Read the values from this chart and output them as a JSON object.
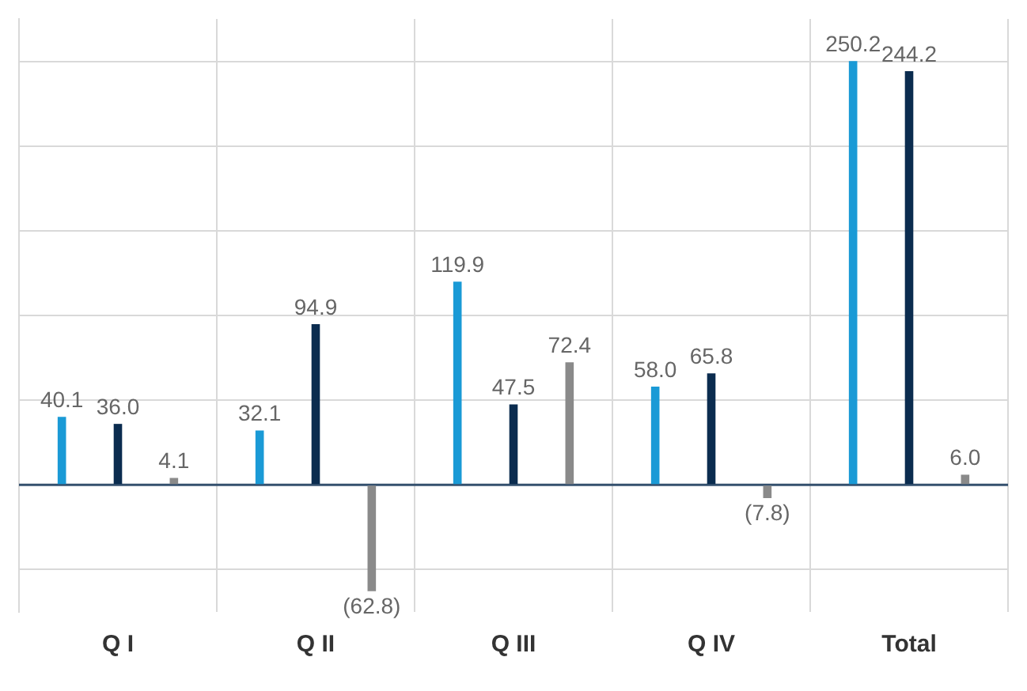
{
  "chart_data": {
    "type": "bar",
    "categories": [
      "Q I",
      "Q II",
      "Q III",
      "Q IV",
      "Total"
    ],
    "series": [
      {
        "color": "#1a9ad6",
        "values": [
          40.1,
          32.1,
          119.9,
          58.0,
          250.2
        ],
        "value_labels": [
          "40.1",
          "32.1",
          "119.9",
          "58.0",
          "250.2"
        ]
      },
      {
        "color": "#0b2c4f",
        "values": [
          36.0,
          94.9,
          47.5,
          65.8,
          244.2
        ],
        "value_labels": [
          "36.0",
          "94.9",
          "47.5",
          "65.8",
          "244.2"
        ]
      },
      {
        "color": "#8a8a8a",
        "values": [
          4.1,
          -62.8,
          72.4,
          -7.8,
          6.0
        ],
        "value_labels": [
          "4.1",
          "(62.8)",
          "72.4",
          "(7.8)",
          "6.0"
        ]
      }
    ],
    "ylim": [
      -75,
      275
    ],
    "yticks": [
      {
        "value": -50,
        "label": null
      },
      {
        "value": 0,
        "label": null
      },
      {
        "value": 50,
        "label": null
      },
      {
        "value": 100,
        "label": null
      },
      {
        "value": 150,
        "label": null
      },
      {
        "value": 200,
        "label": null
      },
      {
        "value": 250,
        "label": null
      }
    ],
    "ref_lines": [
      {
        "axis": "y",
        "value": 0,
        "color": "#34506e"
      }
    ],
    "tick_labels": "x",
    "grid": true,
    "legend": false
  }
}
